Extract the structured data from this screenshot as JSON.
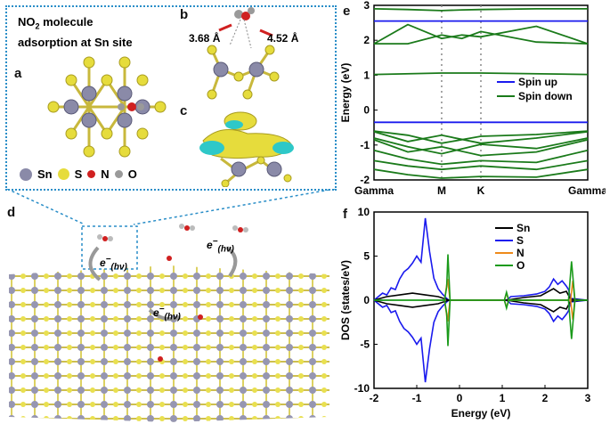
{
  "panels": {
    "a": "a",
    "b": "b",
    "c": "c",
    "d": "d",
    "e": "e",
    "f": "f"
  },
  "inset": {
    "title_line1_prefix": "NO",
    "title_sub": "2",
    "title_line1_suffix": " molecule",
    "title_line2": "adsorption at Sn site",
    "dist1": "3.68 Å",
    "dist2": "4.52 Å",
    "legend": [
      {
        "label": "Sn",
        "color": "#8a8aa8"
      },
      {
        "label": "S",
        "color": "#e6dc3c"
      },
      {
        "label": "N",
        "color": "#d02020"
      },
      {
        "label": "O",
        "color": "#9a9a9a"
      }
    ]
  },
  "lattice_labels": {
    "e_main": "e",
    "e_sub": "(hν)"
  },
  "chart_data": [
    {
      "id": "band-structure",
      "type": "line",
      "ylabel": "Energy (eV)",
      "ylim": [
        -2,
        3
      ],
      "yticks": [
        -2,
        -1,
        0,
        1,
        2,
        3
      ],
      "xticks": [
        {
          "pos": 0,
          "label": "Gamma"
        },
        {
          "pos": 1,
          "label": "M"
        },
        {
          "pos": 1.58,
          "label": "K"
        },
        {
          "pos": 3.16,
          "label": "Gamma"
        }
      ],
      "legend": [
        {
          "name": "Spin up",
          "color": "#1a1aee"
        },
        {
          "name": "Spin down",
          "color": "#1a7a1a"
        }
      ],
      "series": [
        {
          "name": "Spin up",
          "color": "#1a1aee",
          "x": [
            0,
            3.16
          ],
          "y": [
            2.55,
            2.55
          ]
        },
        {
          "name": "Spin up",
          "color": "#1a1aee",
          "x": [
            0,
            3.16
          ],
          "y": [
            -0.35,
            -0.35
          ]
        },
        {
          "name": "Spin down",
          "color": "#1a7a1a",
          "x": [
            0,
            0.5,
            1,
            1.3,
            1.58,
            2.4,
            3.16
          ],
          "y": [
            2.9,
            2.88,
            2.85,
            2.87,
            2.88,
            2.9,
            2.9
          ]
        },
        {
          "name": "Spin down",
          "color": "#1a7a1a",
          "x": [
            0,
            0.5,
            1,
            1.3,
            1.58,
            2.4,
            3.16
          ],
          "y": [
            1.9,
            2.45,
            2.05,
            2.15,
            2.1,
            2.4,
            1.9
          ]
        },
        {
          "name": "Spin down",
          "color": "#1a7a1a",
          "x": [
            0,
            0.5,
            1,
            1.3,
            1.58,
            2.4,
            3.16
          ],
          "y": [
            1.9,
            1.9,
            2.15,
            2.05,
            2.25,
            1.95,
            1.9
          ]
        },
        {
          "name": "Spin down",
          "color": "#1a7a1a",
          "x": [
            0,
            1,
            1.58,
            3.16
          ],
          "y": [
            1.02,
            1.06,
            1.06,
            1.02
          ]
        },
        {
          "name": "Spin down",
          "color": "#1a7a1a",
          "x": [
            0,
            0.5,
            1,
            1.58,
            2.4,
            3.16
          ],
          "y": [
            -0.6,
            -0.72,
            -0.95,
            -0.75,
            -0.7,
            -0.6
          ]
        },
        {
          "name": "Spin down",
          "color": "#1a7a1a",
          "x": [
            0,
            0.5,
            1,
            1.58,
            2.4,
            3.16
          ],
          "y": [
            -0.62,
            -0.9,
            -0.72,
            -0.95,
            -0.8,
            -0.62
          ]
        },
        {
          "name": "Spin down",
          "color": "#1a7a1a",
          "x": [
            0,
            0.5,
            1,
            1.58,
            2.4,
            3.16
          ],
          "y": [
            -0.8,
            -1.05,
            -1.25,
            -0.98,
            -1.1,
            -0.8
          ]
        },
        {
          "name": "Spin down",
          "color": "#1a7a1a",
          "x": [
            0,
            0.5,
            1,
            1.58,
            2.4,
            3.16
          ],
          "y": [
            -0.85,
            -1.2,
            -1.05,
            -1.3,
            -1.2,
            -0.85
          ]
        },
        {
          "name": "Spin down",
          "color": "#1a7a1a",
          "x": [
            0,
            0.5,
            1,
            1.58,
            2.4,
            3.16
          ],
          "y": [
            -1.15,
            -1.4,
            -1.55,
            -1.45,
            -1.5,
            -1.15
          ]
        },
        {
          "name": "Spin down",
          "color": "#1a7a1a",
          "x": [
            0,
            0.5,
            1,
            1.58,
            2.4,
            3.16
          ],
          "y": [
            -1.45,
            -1.6,
            -1.7,
            -1.6,
            -1.7,
            -1.45
          ]
        },
        {
          "name": "Spin down",
          "color": "#1a7a1a",
          "x": [
            0,
            0.5,
            1,
            1.58,
            2.4,
            3.16
          ],
          "y": [
            -1.7,
            -1.85,
            -1.95,
            -1.9,
            -1.92,
            -1.7
          ]
        }
      ]
    },
    {
      "id": "dos",
      "type": "line",
      "xlabel": "Energy (eV)",
      "ylabel": "DOS (states/eV)",
      "xlim": [
        -2,
        3
      ],
      "ylim": [
        -10,
        10
      ],
      "xticks": [
        -2,
        -1,
        0,
        1,
        2,
        3
      ],
      "yticks": [
        -10,
        -5,
        0,
        5,
        10
      ],
      "legend": [
        {
          "name": "Sn",
          "color": "#000000"
        },
        {
          "name": "S",
          "color": "#1a1aee"
        },
        {
          "name": "N",
          "color": "#ee8a1a"
        },
        {
          "name": "O",
          "color": "#1a9a1a"
        }
      ],
      "series": [
        {
          "name": "S",
          "color": "#1a1aee",
          "x": [
            -2,
            -1.8,
            -1.7,
            -1.6,
            -1.5,
            -1.4,
            -1.3,
            -1.2,
            -1.1,
            -1.0,
            -0.9,
            -0.8,
            -0.7,
            -0.6,
            -0.5,
            -0.4,
            -0.3,
            -0.25,
            1.1,
            1.2,
            1.5,
            1.8,
            2.0,
            2.1,
            2.2,
            2.3,
            2.4,
            2.5,
            2.55,
            2.6,
            3.0
          ],
          "y": [
            0,
            0.8,
            0.6,
            1.4,
            1.2,
            2.4,
            3.2,
            3.6,
            4.2,
            5.0,
            4.3,
            9.3,
            5.5,
            2.5,
            1.3,
            0.7,
            0.2,
            0,
            0,
            0.4,
            0.5,
            0.7,
            1.0,
            1.5,
            2.4,
            1.8,
            2.2,
            1.6,
            1.2,
            0.2,
            0
          ]
        },
        {
          "name": "Sn",
          "color": "#000000",
          "x": [
            -2,
            -1.7,
            -1.4,
            -1.1,
            -0.8,
            -0.5,
            -0.25,
            1.1,
            1.5,
            1.9,
            2.2,
            2.35,
            2.5,
            2.6,
            3.0
          ],
          "y": [
            0,
            0.4,
            0.6,
            0.8,
            0.6,
            0.4,
            0,
            0,
            0.3,
            0.5,
            1.3,
            0.8,
            1.0,
            0.1,
            0
          ]
        },
        {
          "name": "N",
          "color": "#ee8a1a",
          "x": [
            -0.35,
            -0.28,
            -0.22,
            1.05,
            1.1,
            1.15,
            2.6,
            2.65,
            2.7
          ],
          "y": [
            0,
            2.4,
            0,
            0,
            0.8,
            0,
            0,
            2.2,
            0
          ]
        },
        {
          "name": "O",
          "color": "#1a9a1a",
          "x": [
            -2,
            -0.35,
            -0.3,
            -0.27,
            -0.22,
            1.05,
            1.1,
            1.15,
            2.55,
            2.62,
            2.7,
            2.95,
            3.0
          ],
          "y": [
            0,
            0,
            1.5,
            5.2,
            0,
            0,
            0.9,
            0,
            0,
            4.4,
            0,
            0,
            0
          ]
        }
      ]
    }
  ]
}
